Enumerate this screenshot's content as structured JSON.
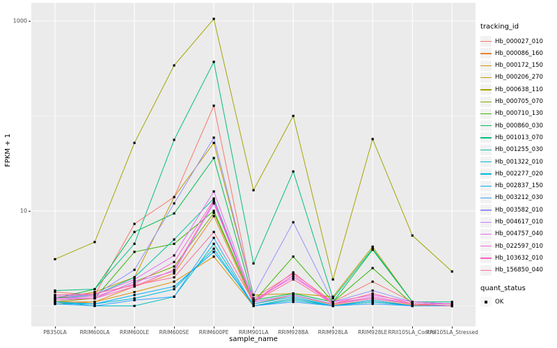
{
  "chart_data": {
    "type": "line",
    "title": "",
    "xlabel": "sample_name",
    "ylabel": "FPKM + 1",
    "y_scale": "log10",
    "grid": "on",
    "legend_position": "right",
    "y_ticks": [
      {
        "label": "1000",
        "value": 1000
      },
      {
        "label": "10",
        "value": 10
      }
    ],
    "y_minor_gridlines": [
      100,
      1
    ],
    "ylim_log10": [
      -0.2,
      3.18
    ],
    "categories": [
      "PB350LA",
      "RRIM600LA",
      "RRIM600LE",
      "RRIM600SE",
      "RRIM600PE",
      "RRIM901LA",
      "RRIM928BA",
      "RRIM928LA",
      "RRIM928LE",
      "RRII105LA_Control",
      "RRII105LA_Stressed"
    ],
    "point_marker": "filled-square",
    "point_color": "#000000",
    "series": [
      {
        "name": "Hb_000027_010",
        "color": "#F8766D",
        "values": [
          1.4,
          1.3,
          7.3,
          14.0,
          128,
          1.2,
          2.2,
          1.1,
          1.8,
          1.1,
          1.05
        ]
      },
      {
        "name": "Hb_000086_160",
        "color": "#EA8331",
        "values": [
          1.1,
          1.1,
          1.6,
          2.2,
          8.8,
          1.05,
          1.3,
          1.02,
          1.15,
          1.02,
          1.0
        ]
      },
      {
        "name": "Hb_000172_150",
        "color": "#D89000",
        "values": [
          1.05,
          1.1,
          1.4,
          1.8,
          3.3,
          1.0,
          1.2,
          1.0,
          1.1,
          1.0,
          1.0
        ]
      },
      {
        "name": "Hb_000206_270",
        "color": "#C09B00",
        "values": [
          1.2,
          1.4,
          2.0,
          14.0,
          52,
          1.3,
          1.35,
          1.25,
          4.2,
          1.1,
          1.05
        ]
      },
      {
        "name": "Hb_000638_110",
        "color": "#A3A500",
        "values": [
          3.1,
          4.7,
          52,
          340,
          1050,
          16.5,
          100,
          1.9,
          57,
          5.5,
          2.3
        ]
      },
      {
        "name": "Hb_000705_070",
        "color": "#7CAE00",
        "values": [
          1.1,
          1.2,
          1.8,
          2.6,
          9.5,
          1.1,
          1.3,
          1.05,
          1.2,
          1.05,
          1.0
        ]
      },
      {
        "name": "Hb_000710_130",
        "color": "#39B600",
        "values": [
          1.15,
          1.2,
          3.7,
          4.5,
          10.0,
          1.1,
          3.3,
          1.1,
          2.5,
          1.05,
          1.05
        ]
      },
      {
        "name": "Hb_000860_030",
        "color": "#00BB4E",
        "values": [
          1.2,
          1.5,
          6.0,
          9.4,
          36,
          1.15,
          1.35,
          1.1,
          3.9,
          1.1,
          1.05
        ]
      },
      {
        "name": "Hb_001013_070",
        "color": "#00BF7D",
        "values": [
          1.45,
          1.5,
          4.5,
          56,
          370,
          2.8,
          26,
          1.2,
          4.0,
          1.1,
          1.1
        ]
      },
      {
        "name": "Hb_001255_030",
        "color": "#00C1A3",
        "values": [
          1.2,
          1.3,
          2.0,
          5.0,
          13.5,
          1.1,
          1.3,
          1.05,
          1.2,
          1.05,
          1.05
        ]
      },
      {
        "name": "Hb_001322_010",
        "color": "#00BFC4",
        "values": [
          1.1,
          1.0,
          1.0,
          1.25,
          4.5,
          1.0,
          1.15,
          1.0,
          1.1,
          1.0,
          1.0
        ]
      },
      {
        "name": "Hb_002277_020",
        "color": "#00BAE0",
        "values": [
          1.05,
          1.05,
          1.2,
          1.5,
          4.0,
          1.0,
          1.2,
          1.0,
          1.1,
          1.0,
          1.0
        ]
      },
      {
        "name": "Hb_002837_150",
        "color": "#00B0F6",
        "values": [
          1.1,
          1.05,
          1.3,
          1.6,
          3.7,
          1.05,
          1.25,
          1.0,
          1.15,
          1.0,
          1.0
        ]
      },
      {
        "name": "Hb_003212_030",
        "color": "#35A2FF",
        "values": [
          1.05,
          1.0,
          1.15,
          1.25,
          5.2,
          1.0,
          1.1,
          1.0,
          1.05,
          1.0,
          1.0
        ]
      },
      {
        "name": "Hb_003582_010",
        "color": "#9590FF",
        "values": [
          1.3,
          1.3,
          2.4,
          12.0,
          59,
          1.3,
          7.6,
          1.1,
          1.45,
          1.1,
          1.05
        ]
      },
      {
        "name": "Hb_004617_010",
        "color": "#C77CFF",
        "values": [
          1.2,
          1.2,
          1.8,
          2.3,
          12.0,
          1.1,
          1.3,
          1.05,
          1.2,
          1.05,
          1.0
        ]
      },
      {
        "name": "Hb_004757_040",
        "color": "#E76BF3",
        "values": [
          1.25,
          1.3,
          1.9,
          3.4,
          16.0,
          1.15,
          2.0,
          1.1,
          1.3,
          1.1,
          1.05
        ]
      },
      {
        "name": "Hb_022597_010",
        "color": "#FA62DB",
        "values": [
          1.2,
          1.25,
          1.7,
          2.9,
          13.0,
          1.1,
          2.1,
          1.05,
          1.25,
          1.05,
          1.05
        ]
      },
      {
        "name": "Hb_103632_010",
        "color": "#FF62BC",
        "values": [
          1.15,
          1.2,
          1.6,
          2.4,
          12.5,
          1.1,
          2.25,
          1.05,
          1.2,
          1.05,
          1.0
        ]
      },
      {
        "name": "Hb_156850_040",
        "color": "#FF6A98",
        "values": [
          1.3,
          1.35,
          1.65,
          2.0,
          6.0,
          1.1,
          1.9,
          1.05,
          1.35,
          1.05,
          1.0
        ]
      }
    ]
  },
  "legend": {
    "tracking_title": "tracking_id",
    "quant_title": "quant_status",
    "quant_items": [
      {
        "label": "OK"
      }
    ]
  },
  "colors": {
    "panel_bg": "#EBEBEB",
    "grid_major": "#FFFFFF",
    "grid_minor": "#FFFFFF",
    "tick_text": "#4D4D4D",
    "legend_key_bg": "#F2F2F2",
    "point": "#000000"
  }
}
